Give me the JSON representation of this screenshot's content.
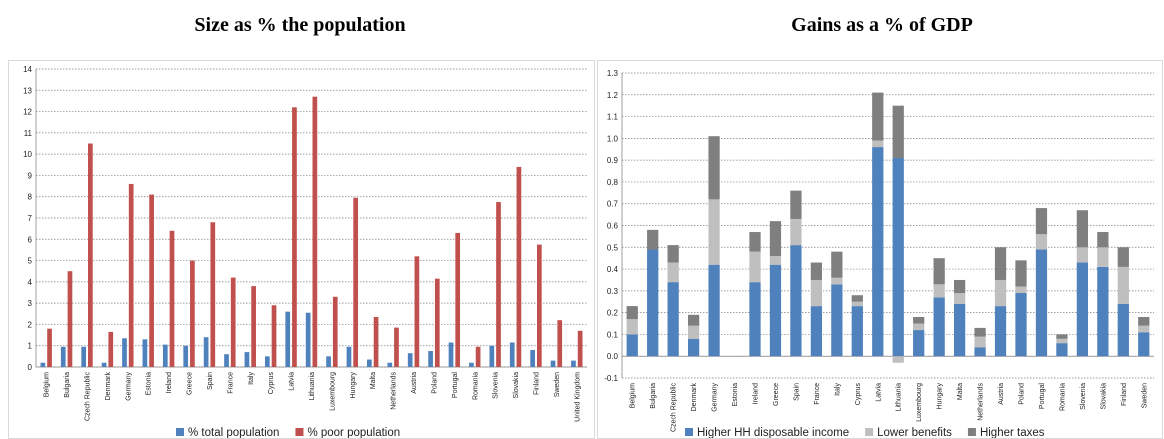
{
  "chart_data": [
    {
      "type": "bar",
      "title": "Size as % the population",
      "xlabel": "",
      "ylabel": "",
      "ylim": [
        0,
        14
      ],
      "yticks": [
        0,
        1,
        2,
        3,
        4,
        5,
        6,
        7,
        8,
        9,
        10,
        11,
        12,
        13,
        14
      ],
      "grid": "dotted horizontal",
      "legend": "bottom",
      "categories": [
        "Belgium",
        "Bulgaria",
        "Czech Republic",
        "Denmark",
        "Germany",
        "Estonia",
        "Ireland",
        "Greece",
        "Spain",
        "France",
        "Italy",
        "Cyprus",
        "Latvia",
        "Lithuania",
        "Luxembourg",
        "Hungary",
        "Malta",
        "Netherlands",
        "Austria",
        "Poland",
        "Portugal",
        "Romania",
        "Slovenia",
        "Slovakia",
        "Finland",
        "Sweden",
        "United Kingdom"
      ],
      "series": [
        {
          "name": "% total population",
          "color": "#4f81bd",
          "values": [
            0.2,
            0.95,
            0.95,
            0.2,
            1.35,
            1.3,
            1.05,
            1.0,
            1.4,
            0.6,
            0.7,
            0.5,
            2.6,
            2.55,
            0.5,
            0.95,
            0.35,
            0.2,
            0.65,
            0.75,
            1.15,
            0.2,
            1.0,
            1.15,
            0.8,
            0.3,
            0.3
          ]
        },
        {
          "name": "% poor population",
          "color": "#c0504d",
          "values": [
            1.8,
            4.5,
            10.5,
            1.65,
            8.6,
            8.1,
            6.4,
            5.0,
            6.8,
            4.2,
            3.8,
            2.9,
            12.2,
            12.7,
            3.3,
            7.95,
            2.35,
            1.85,
            5.2,
            4.15,
            6.3,
            0.95,
            7.75,
            9.4,
            5.75,
            2.2,
            1.7
          ]
        }
      ]
    },
    {
      "type": "bar",
      "stacked": true,
      "title": "Gains as a % of GDP",
      "xlabel": "",
      "ylabel": "",
      "ylim": [
        -0.1,
        1.3
      ],
      "yticks": [
        -0.1,
        0.0,
        0.1,
        0.2,
        0.3,
        0.4,
        0.5,
        0.6,
        0.7,
        0.8,
        0.9,
        1.0,
        1.1,
        1.2,
        1.3
      ],
      "ytick_labels": [
        "-0.1",
        "0.0",
        "0.1",
        "0.2",
        "0.3",
        "0.4",
        "0.5",
        "0.6",
        "0.7",
        "0.8",
        "0.9",
        "1.0",
        "1.1",
        "1.2",
        "1.3"
      ],
      "grid": "dotted horizontal",
      "legend": "bottom",
      "categories": [
        "Belgium",
        "Bulgaria",
        "Czech Republic",
        "Denmark",
        "Germany",
        "Estonia",
        "Ireland",
        "Greece",
        "Spain",
        "France",
        "Italy",
        "Cyprus",
        "Latvia",
        "Lithuania",
        "Luxembourg",
        "Hungary",
        "Malta",
        "Netherlands",
        "Austria",
        "Poland",
        "Portugal",
        "Romania",
        "Slovenia",
        "Slovakia",
        "Finland",
        "Sweden"
      ],
      "series": [
        {
          "name": "Higher HH disposable income",
          "color": "#4f81bd",
          "values": [
            0.1,
            0.49,
            0.34,
            0.08,
            0.42,
            0.0,
            0.34,
            0.42,
            0.51,
            0.23,
            0.33,
            0.23,
            0.96,
            0.91,
            0.12,
            0.27,
            0.24,
            0.04,
            0.23,
            0.29,
            0.49,
            0.06,
            0.43,
            0.41,
            0.24,
            0.11
          ]
        },
        {
          "name": "Lower benefits",
          "color": "#bfbfbf",
          "values": [
            0.07,
            0.0,
            0.09,
            0.06,
            0.3,
            0.0,
            0.14,
            0.04,
            0.12,
            0.12,
            0.03,
            0.02,
            0.03,
            -0.03,
            0.03,
            0.06,
            0.05,
            0.05,
            0.12,
            0.03,
            0.07,
            0.02,
            0.07,
            0.09,
            0.17,
            0.03
          ]
        },
        {
          "name": "Higher taxes",
          "color": "#7f7f7f",
          "values": [
            0.06,
            0.09,
            0.08,
            0.05,
            0.29,
            0.0,
            0.09,
            0.16,
            0.13,
            0.08,
            0.12,
            0.03,
            0.22,
            0.24,
            0.03,
            0.12,
            0.06,
            0.04,
            0.15,
            0.12,
            0.12,
            0.02,
            0.17,
            0.07,
            0.09,
            0.04
          ]
        }
      ]
    }
  ]
}
